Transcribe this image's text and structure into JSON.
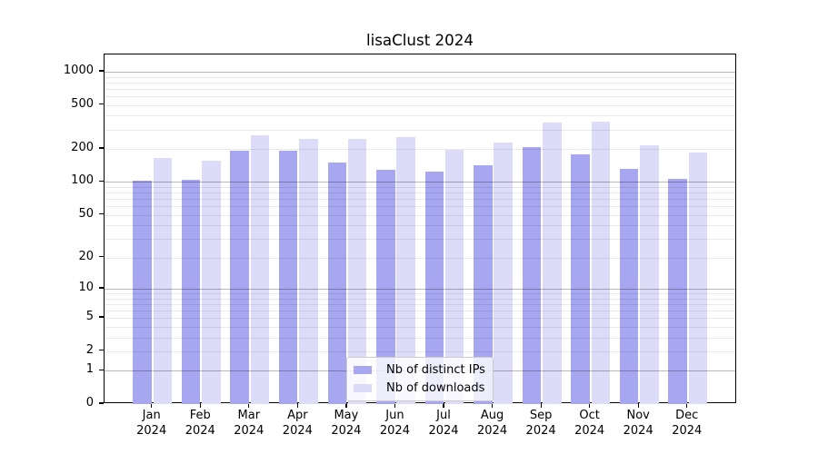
{
  "chart_data": {
    "type": "bar",
    "title": "lisaClust 2024",
    "categories": [
      "Jan",
      "Feb",
      "Mar",
      "Apr",
      "May",
      "Jun",
      "Jul",
      "Aug",
      "Sep",
      "Oct",
      "Nov",
      "Dec"
    ],
    "x_tick_line2": "2024",
    "series": [
      {
        "name": "Nb of distinct IPs",
        "color": "#a6a6f1",
        "values": [
          102,
          105,
          194,
          194,
          151,
          130,
          124,
          142,
          209,
          178,
          131,
          107
        ]
      },
      {
        "name": "Nb of downloads",
        "color": "#dcdcf9",
        "values": [
          165,
          157,
          267,
          248,
          246,
          258,
          195,
          230,
          346,
          350,
          215,
          184
        ]
      }
    ],
    "y_axis": {
      "scale": "log10(value+1)",
      "tick_values": [
        0,
        1,
        2,
        5,
        10,
        20,
        50,
        100,
        200,
        500,
        1000
      ],
      "tick_labels": [
        "0",
        "1",
        "2",
        "5",
        "10",
        "20",
        "50",
        "100",
        "200",
        "500",
        "1000"
      ],
      "top_value": 1430
    },
    "grid": {
      "major_at": [
        1,
        10,
        100,
        1000
      ],
      "minor_decades": [
        1,
        10,
        100
      ],
      "grid_on": true
    },
    "legend": {
      "position": "lower-center"
    }
  }
}
